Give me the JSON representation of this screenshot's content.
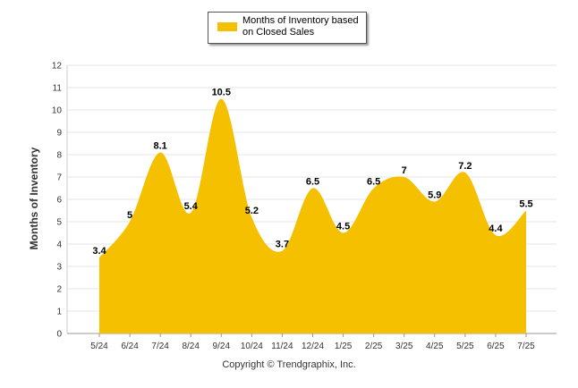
{
  "chart_data": {
    "type": "area",
    "ylabel": "Months of Inventory",
    "xlabel": "",
    "ylim": [
      0,
      12
    ],
    "yticks": [
      0,
      1,
      2,
      3,
      4,
      5,
      6,
      7,
      8,
      9,
      10,
      11,
      12
    ],
    "grid": true,
    "legend_position": "top-center",
    "categories": [
      "5/24",
      "6/24",
      "7/24",
      "8/24",
      "9/24",
      "10/24",
      "11/24",
      "12/24",
      "1/25",
      "2/25",
      "3/25",
      "4/25",
      "5/25",
      "6/25",
      "7/25"
    ],
    "series": [
      {
        "name": "Months of Inventory based on Closed Sales",
        "values": [
          3.4,
          5,
          8.1,
          5.4,
          10.5,
          5.2,
          3.7,
          6.5,
          4.5,
          6.5,
          7,
          5.9,
          7.2,
          4.4,
          5.5
        ],
        "labels": [
          "3.4",
          "5",
          "8.1",
          "5.4",
          "10.5",
          "5.2",
          "3.7",
          "6.5",
          "4.5",
          "6.5",
          "7",
          "5.9",
          "7.2",
          "4.4",
          "5.5"
        ],
        "color": "#f5c000"
      }
    ]
  },
  "footer": {
    "copyright": "Copyright © Trendgraphix, Inc."
  }
}
